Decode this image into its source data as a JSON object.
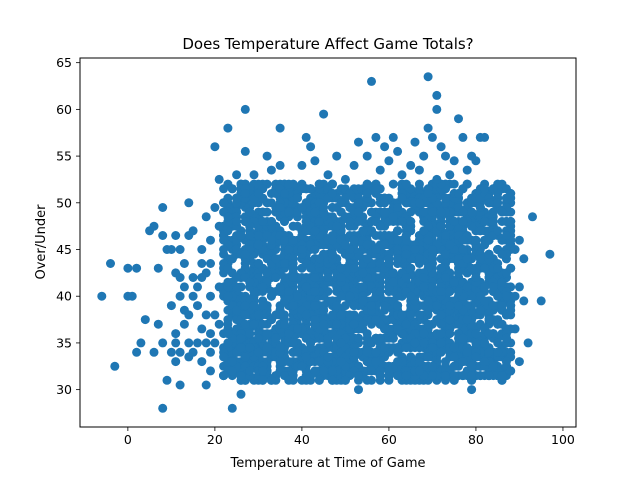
{
  "chart_data": {
    "type": "scatter",
    "title": "Does Temperature Affect Game Totals?",
    "xlabel": "Temperature at Time of Game",
    "ylabel": "Over/Under",
    "xlim": [
      -11,
      103
    ],
    "ylim": [
      26,
      65.5
    ],
    "xticks": [
      0,
      20,
      40,
      60,
      80,
      100
    ],
    "yticks": [
      30,
      35,
      40,
      45,
      50,
      55,
      60,
      65
    ],
    "grid": false,
    "legend": "none",
    "marker_color": "#1f77b4",
    "series": [
      {
        "points": [
          [
            -6,
            40
          ],
          [
            -4,
            43.5
          ],
          [
            -3,
            32.5
          ],
          [
            0,
            43
          ],
          [
            0,
            40
          ],
          [
            1,
            40
          ],
          [
            2,
            34
          ],
          [
            2,
            43
          ],
          [
            3,
            35
          ],
          [
            4,
            37.5
          ],
          [
            5,
            47
          ],
          [
            6,
            47.5
          ],
          [
            6,
            34
          ],
          [
            7,
            43
          ],
          [
            7,
            37
          ],
          [
            8,
            28
          ],
          [
            8,
            35
          ],
          [
            8,
            46.5
          ],
          [
            8,
            49.5
          ],
          [
            9,
            31
          ],
          [
            9,
            45
          ],
          [
            10,
            34
          ],
          [
            10,
            39
          ],
          [
            10,
            45
          ],
          [
            11,
            33
          ],
          [
            11,
            35
          ],
          [
            11,
            36
          ],
          [
            11,
            42.5
          ],
          [
            11,
            46.5
          ],
          [
            12,
            30.5
          ],
          [
            12,
            34
          ],
          [
            12,
            40
          ],
          [
            12,
            42
          ],
          [
            12,
            45
          ],
          [
            13,
            37
          ],
          [
            13,
            38.5
          ],
          [
            13,
            41
          ],
          [
            13,
            43.5
          ],
          [
            14,
            33.5
          ],
          [
            14,
            35
          ],
          [
            14,
            38
          ],
          [
            14,
            46.5
          ],
          [
            14,
            50
          ],
          [
            15,
            34
          ],
          [
            15,
            40
          ],
          [
            15,
            42
          ],
          [
            15,
            47
          ],
          [
            16,
            35
          ],
          [
            16,
            39
          ],
          [
            16,
            41
          ],
          [
            17,
            33
          ],
          [
            17,
            36.5
          ],
          [
            17,
            42
          ],
          [
            17,
            43.5
          ],
          [
            17,
            45
          ],
          [
            18,
            30.5
          ],
          [
            18,
            35
          ],
          [
            18,
            38
          ],
          [
            18,
            42.5
          ],
          [
            18,
            48.5
          ],
          [
            19,
            32
          ],
          [
            19,
            34
          ],
          [
            19,
            36
          ],
          [
            19,
            40
          ],
          [
            19,
            43.5
          ],
          [
            19,
            46
          ],
          [
            20,
            56
          ],
          [
            20,
            49.5
          ],
          [
            20,
            38
          ],
          [
            20,
            35
          ],
          [
            21,
            52.5
          ],
          [
            21,
            47.5
          ],
          [
            21,
            41
          ],
          [
            21,
            37
          ],
          [
            22,
            31.5
          ],
          [
            22,
            33.5
          ],
          [
            22,
            45
          ],
          [
            22,
            50
          ],
          [
            23,
            58
          ],
          [
            23,
            43
          ],
          [
            23,
            40
          ],
          [
            23,
            36
          ],
          [
            24,
            28
          ],
          [
            24,
            51.5
          ],
          [
            24,
            44
          ],
          [
            24,
            33
          ],
          [
            25,
            53
          ],
          [
            25,
            48
          ],
          [
            25,
            38.5
          ],
          [
            26,
            29.5
          ],
          [
            26,
            46.5
          ],
          [
            26,
            35.5
          ],
          [
            27,
            60
          ],
          [
            27,
            55.5
          ],
          [
            27,
            51
          ],
          [
            27,
            44.5
          ],
          [
            28,
            32
          ],
          [
            28,
            49
          ],
          [
            28,
            41.5
          ],
          [
            29,
            53
          ],
          [
            29,
            37
          ],
          [
            30,
            51
          ],
          [
            30,
            45.5
          ],
          [
            30,
            34
          ],
          [
            31,
            32
          ],
          [
            31,
            48
          ],
          [
            31,
            39
          ],
          [
            32,
            55
          ],
          [
            32,
            42.5
          ],
          [
            32,
            36
          ],
          [
            33,
            53.5
          ],
          [
            33,
            50
          ],
          [
            33,
            46
          ],
          [
            33,
            31
          ],
          [
            34,
            44
          ],
          [
            34,
            38
          ],
          [
            35,
            58
          ],
          [
            35,
            54
          ],
          [
            35,
            49.5
          ],
          [
            35,
            41
          ],
          [
            35,
            33
          ],
          [
            36,
            51
          ],
          [
            36,
            46
          ],
          [
            36,
            37
          ],
          [
            37,
            52
          ],
          [
            37,
            31
          ],
          [
            38,
            47.5
          ],
          [
            38,
            43
          ],
          [
            38,
            35
          ],
          [
            39,
            50.5
          ],
          [
            39,
            40
          ],
          [
            40,
            54
          ],
          [
            40,
            45
          ],
          [
            40,
            32.5
          ],
          [
            41,
            57
          ],
          [
            41,
            48
          ],
          [
            41,
            38
          ],
          [
            42,
            56
          ],
          [
            42,
            51.5
          ],
          [
            42,
            43
          ],
          [
            42,
            35
          ],
          [
            43,
            54.5
          ],
          [
            43,
            47
          ],
          [
            43,
            40.5
          ],
          [
            43,
            32
          ],
          [
            44,
            52
          ],
          [
            44,
            44
          ],
          [
            45,
            59.5
          ],
          [
            45,
            49.5
          ],
          [
            45,
            37
          ],
          [
            46,
            53
          ],
          [
            46,
            42
          ],
          [
            46,
            33.5
          ],
          [
            47,
            51
          ],
          [
            47,
            46
          ],
          [
            47,
            31
          ],
          [
            48,
            55
          ],
          [
            48,
            47.5
          ],
          [
            48,
            39
          ],
          [
            49,
            50
          ],
          [
            49,
            43
          ],
          [
            49,
            35
          ],
          [
            50,
            52.5
          ],
          [
            50,
            45.5
          ],
          [
            50,
            31
          ],
          [
            51,
            48
          ],
          [
            51,
            40
          ],
          [
            52,
            54
          ],
          [
            52,
            46
          ],
          [
            52,
            34
          ],
          [
            53,
            56.5
          ],
          [
            53,
            50
          ],
          [
            53,
            30
          ],
          [
            54,
            47
          ],
          [
            54,
            41
          ],
          [
            55,
            55
          ],
          [
            55,
            52
          ],
          [
            55,
            44
          ],
          [
            55,
            36
          ],
          [
            56,
            63
          ],
          [
            56,
            49
          ],
          [
            56,
            39
          ],
          [
            57,
            57
          ],
          [
            57,
            51.5
          ],
          [
            57,
            45
          ],
          [
            57,
            33
          ],
          [
            58,
            53.5
          ],
          [
            58,
            47.5
          ],
          [
            58,
            40.5
          ],
          [
            59,
            56
          ],
          [
            59,
            50
          ],
          [
            59,
            36.5
          ],
          [
            60,
            54.5
          ],
          [
            60,
            44
          ],
          [
            60,
            32
          ],
          [
            61,
            57
          ],
          [
            61,
            48.5
          ],
          [
            61,
            41.5
          ],
          [
            62,
            55.5
          ],
          [
            62,
            46
          ],
          [
            62,
            34
          ],
          [
            63,
            53
          ],
          [
            63,
            50.5
          ],
          [
            63,
            38
          ],
          [
            64,
            52
          ],
          [
            64,
            44.5
          ],
          [
            64,
            31.5
          ],
          [
            65,
            54
          ],
          [
            65,
            48
          ],
          [
            65,
            40
          ],
          [
            66,
            56.5
          ],
          [
            66,
            45
          ],
          [
            66,
            35
          ],
          [
            67,
            53.5
          ],
          [
            67,
            50
          ],
          [
            67,
            32
          ],
          [
            68,
            55
          ],
          [
            68,
            47
          ],
          [
            68,
            42
          ],
          [
            69,
            63.5
          ],
          [
            69,
            58
          ],
          [
            69,
            51
          ],
          [
            69,
            37
          ],
          [
            70,
            57
          ],
          [
            70,
            49
          ],
          [
            70,
            44
          ],
          [
            70,
            31.5
          ],
          [
            71,
            61.5
          ],
          [
            71,
            60
          ],
          [
            71,
            52.5
          ],
          [
            71,
            39
          ],
          [
            72,
            56
          ],
          [
            72,
            47.5
          ],
          [
            72,
            34
          ],
          [
            73,
            55
          ],
          [
            73,
            50.5
          ],
          [
            73,
            42
          ],
          [
            74,
            53
          ],
          [
            74,
            45.5
          ],
          [
            74,
            36
          ],
          [
            75,
            54.5
          ],
          [
            75,
            48
          ],
          [
            75,
            31
          ],
          [
            76,
            59
          ],
          [
            76,
            51
          ],
          [
            76,
            40.5
          ],
          [
            77,
            57
          ],
          [
            77,
            46
          ],
          [
            77,
            33
          ],
          [
            78,
            53.5
          ],
          [
            78,
            44
          ],
          [
            78,
            37.5
          ],
          [
            79,
            55
          ],
          [
            79,
            49
          ],
          [
            79,
            30
          ],
          [
            80,
            54.5
          ],
          [
            80,
            42
          ],
          [
            80,
            35
          ],
          [
            81,
            57
          ],
          [
            81,
            47
          ],
          [
            81,
            38.5
          ],
          [
            82,
            57
          ],
          [
            82,
            51.5
          ],
          [
            82,
            41
          ],
          [
            82,
            33
          ],
          [
            83,
            50
          ],
          [
            83,
            44.5
          ],
          [
            83,
            36
          ],
          [
            84,
            48
          ],
          [
            84,
            39
          ],
          [
            85,
            47
          ],
          [
            85,
            43
          ],
          [
            85,
            34
          ],
          [
            86,
            49
          ],
          [
            86,
            41.5
          ],
          [
            86,
            37
          ],
          [
            87,
            46.5
          ],
          [
            87,
            40
          ],
          [
            87,
            35.5
          ],
          [
            88,
            48
          ],
          [
            88,
            43
          ],
          [
            88,
            38.5
          ],
          [
            89,
            45
          ],
          [
            89,
            40
          ],
          [
            89,
            36.5
          ],
          [
            90,
            46
          ],
          [
            90,
            41
          ],
          [
            90,
            33
          ],
          [
            91,
            44
          ],
          [
            91,
            39.5
          ],
          [
            92,
            35
          ],
          [
            93,
            48.5
          ],
          [
            95,
            39.5
          ],
          [
            97,
            44.5
          ]
        ]
      }
    ],
    "dense_region": {
      "x_range": [
        22,
        88
      ],
      "y_range": [
        31,
        52
      ],
      "note_count": 3000
    }
  }
}
